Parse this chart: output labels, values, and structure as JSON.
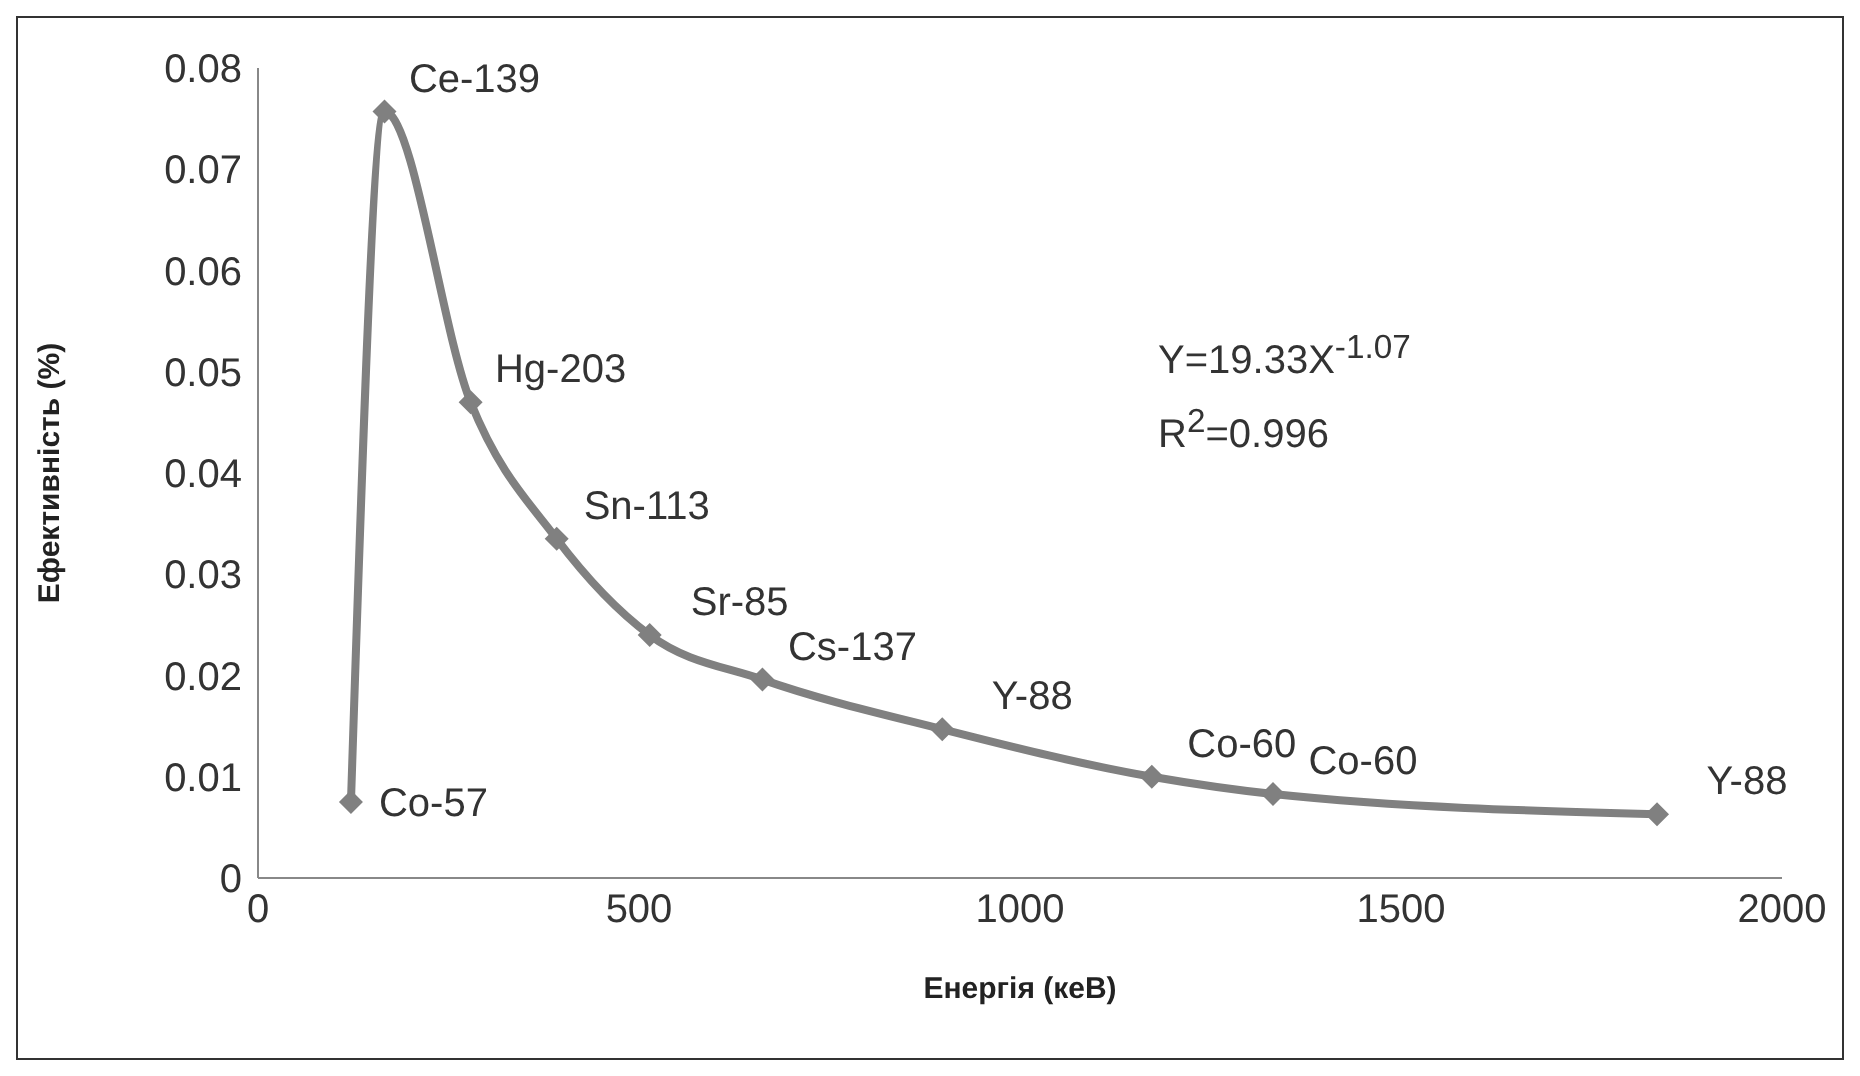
{
  "chart_data": {
    "type": "line",
    "xlabel": "Енергія (кеВ)",
    "ylabel": "Ефективність (%)",
    "x": [
      122,
      166,
      279,
      392,
      514,
      662,
      898,
      1173,
      1332,
      1836
    ],
    "series": [
      {
        "color": "#808080",
        "values": [
          0.0075,
          0.0757,
          0.047,
          0.0335,
          0.024,
          0.0196,
          0.0147,
          0.01,
          0.0083,
          0.0063
        ]
      }
    ],
    "xlim": [
      0,
      2000
    ],
    "xticks": [
      0,
      500,
      1000,
      1500,
      2000
    ],
    "ylim": [
      0,
      0.08
    ],
    "yticks": [
      0,
      0.01,
      0.02,
      0.03,
      0.04,
      0.05,
      0.06,
      0.07,
      0.08
    ],
    "grid": false,
    "legend": false,
    "marker": "diamond",
    "line_style": "solid",
    "annotations": [
      {
        "text": "Co-57",
        "x": 122,
        "y": 0.0075
      },
      {
        "text": "Ce-139",
        "x": 166,
        "y": 0.0757
      },
      {
        "text": "Hg-203",
        "x": 279,
        "y": 0.047
      },
      {
        "text": "Sn-113",
        "x": 392,
        "y": 0.0335
      },
      {
        "text": "Sr-85",
        "x": 514,
        "y": 0.024
      },
      {
        "text": "Cs-137",
        "x": 662,
        "y": 0.0196
      },
      {
        "text": "Y-88",
        "x": 898,
        "y": 0.0147
      },
      {
        "text": "Co-60",
        "x": 1173,
        "y": 0.01
      },
      {
        "text": "Co-60",
        "x": 1332,
        "y": 0.0083
      },
      {
        "text": "Y-88",
        "x": 1836,
        "y": 0.0063
      },
      "Y=19.33X$^{-1.07}$",
      "R$^{2}$=0.996"
    ]
  }
}
